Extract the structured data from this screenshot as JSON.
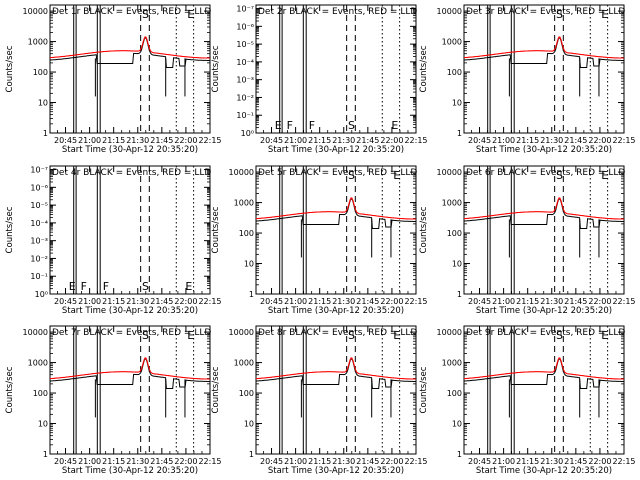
{
  "common": {
    "xlabel": "Start Time (30-Apr-12 20:35:20)",
    "xtick_labels": [
      "20:45",
      "21:00",
      "21:15",
      "21:30",
      "21:45",
      "22:00",
      "22:15"
    ],
    "ylabel": "Counts/sec",
    "y_tick_labels": [
      "1",
      "10",
      "100",
      "1000",
      "10000"
    ],
    "empty_y_tick_labels": [
      "10⁻⁷",
      "10⁻⁶",
      "10⁻⁵",
      "10⁻⁴",
      "10⁻³",
      "10⁻²",
      "10⁻¹",
      "10⁰"
    ],
    "colors": {
      "events": "#000000",
      "lld": "#ff0000"
    }
  },
  "chart_data": [
    {
      "id": "det1",
      "type": "line",
      "title": "Det 1r BLACK = Events, RED = LLD",
      "has_data": true,
      "markers": [
        "S",
        "E"
      ]
    },
    {
      "id": "det2",
      "type": "line",
      "title": "Det 2r BLACK = Events, RED = LLD",
      "has_data": false,
      "markers": [
        "E",
        "F",
        "F",
        "S",
        "E"
      ]
    },
    {
      "id": "det3",
      "type": "line",
      "title": "Det 3r BLACK = Events, RED = LLD",
      "has_data": true,
      "markers": [
        "S",
        "E"
      ]
    },
    {
      "id": "det4",
      "type": "line",
      "title": "Det 4r BLACK = Events, RED = LLD",
      "has_data": false,
      "markers": [
        "E",
        "F",
        "F",
        "S",
        "E"
      ]
    },
    {
      "id": "det5",
      "type": "line",
      "title": "Det 5r BLACK = Events, RED = LLD",
      "has_data": true,
      "markers": [
        "S",
        "E"
      ]
    },
    {
      "id": "det6",
      "type": "line",
      "title": "Det 6r BLACK = Events, RED = LLD",
      "has_data": true,
      "markers": [
        "S",
        "E"
      ]
    },
    {
      "id": "det7",
      "type": "line",
      "title": "Det 7r BLACK = Events, RED = LLD",
      "has_data": true,
      "markers": [
        "S",
        "E"
      ]
    },
    {
      "id": "det8",
      "type": "line",
      "title": "Det 8r BLACK = Events, RED = LLD",
      "has_data": true,
      "markers": [
        "S",
        "E"
      ]
    },
    {
      "id": "det9",
      "type": "line",
      "title": "Det 9r BLACK = Events, RED = LLD",
      "has_data": true,
      "markers": [
        "S",
        "E"
      ]
    }
  ]
}
